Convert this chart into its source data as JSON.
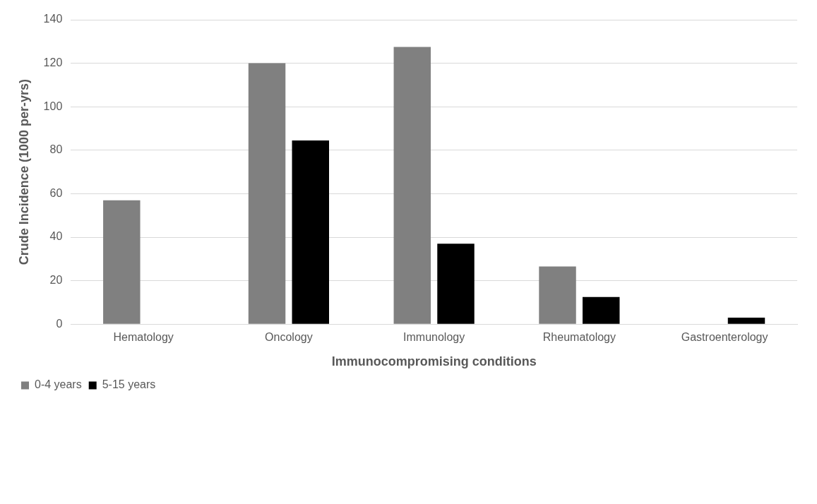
{
  "chart_data": {
    "type": "bar",
    "xlabel": "Immunocompromising conditions",
    "ylabel": "Crude Incidence (1000 per-yrs)",
    "categories": [
      "Hematology",
      "Oncology",
      "Immunology",
      "Rheumatology",
      "Gastroenterology"
    ],
    "series": [
      {
        "name": "0-4 years",
        "color": "#808080",
        "values": [
          57,
          120,
          127.5,
          26.5,
          0
        ]
      },
      {
        "name": "5-15 years",
        "color": "#000000",
        "values": [
          0,
          84.5,
          37,
          12.5,
          3
        ]
      }
    ],
    "ylim": [
      0,
      140
    ],
    "yticks": [
      0,
      20,
      40,
      60,
      80,
      100,
      120,
      140
    ],
    "grid": "y",
    "legend": "bottom left"
  }
}
